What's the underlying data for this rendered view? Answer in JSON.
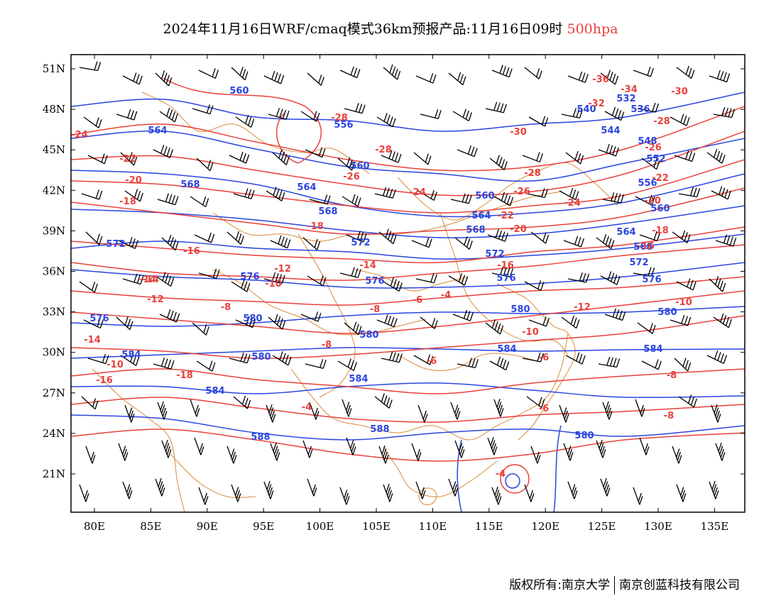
{
  "title": {
    "text": "2024年11月16日WRF/cmaq模式36km预报产品:11月16日09时",
    "level": "500hpa",
    "level_color": "#e8413c"
  },
  "axes": {
    "lat_labels": [
      "51N",
      "48N",
      "45N",
      "42N",
      "39N",
      "36N",
      "33N",
      "30N",
      "27N",
      "24N",
      "21N"
    ],
    "lon_labels": [
      "80E",
      "85E",
      "90E",
      "95E",
      "100E",
      "105E",
      "110E",
      "115E",
      "120E",
      "125E",
      "130E",
      "135E"
    ]
  },
  "colors": {
    "geopotential": "#2a45e0",
    "temperature": "#e8413c",
    "borders": "#d98a3a",
    "wind_barbs": "#000000"
  },
  "geopotential_labels": [
    "560",
    "564",
    "556",
    "560",
    "564",
    "568",
    "568",
    "564",
    "560",
    "568",
    "572",
    "572",
    "572",
    "576",
    "576",
    "576",
    "576",
    "580",
    "580",
    "580",
    "580",
    "580",
    "584",
    "584",
    "584",
    "584",
    "584",
    "588",
    "588",
    "540",
    "544",
    "536",
    "532",
    "548",
    "552",
    "556",
    "560",
    "564",
    "568",
    "572",
    "576",
    "580"
  ],
  "temperature_labels": [
    "-24",
    "-22",
    "-20",
    "-18",
    "-28",
    "-26",
    "-28",
    "-24",
    "-16",
    "-14",
    "-12",
    "-10",
    "-8",
    "-8",
    "-6",
    "-4",
    "-6",
    "-4",
    "-8",
    "-10",
    "-12",
    "-14",
    "-16",
    "-18",
    "-20",
    "-22",
    "-24",
    "-26",
    "-28",
    "-30",
    "-32",
    "-34",
    "-36",
    "-30",
    "-28",
    "-26",
    "-22",
    "-20",
    "-18",
    "-16",
    "-14",
    "-12",
    "-10",
    "-8",
    "-6",
    "-4",
    "-8",
    "-6",
    "-10",
    "-14",
    "-16",
    "-18"
  ],
  "copyright": {
    "left": "版权所有:南京大学",
    "right": "南京创蓝科技有限公司"
  }
}
